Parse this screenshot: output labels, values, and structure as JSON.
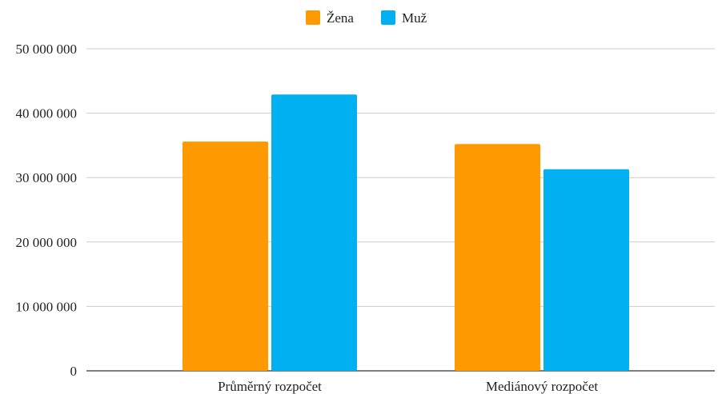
{
  "chart_data": {
    "type": "bar",
    "categories": [
      "Průměrný rozpočet",
      "Mediánový rozpočet"
    ],
    "series": [
      {
        "name": "Žena",
        "values": [
          35600000,
          35200000
        ],
        "color": "#ff9900"
      },
      {
        "name": "Muž",
        "values": [
          42900000,
          31300000
        ],
        "color": "#00b0f0"
      }
    ],
    "ylim": [
      0,
      50000000
    ],
    "yticks": [
      0,
      10000000,
      20000000,
      30000000,
      40000000,
      50000000
    ],
    "ytick_labels": [
      "0",
      "10 000 000",
      "20 000 000",
      "30 000 000",
      "40 000 000",
      "50 000 000"
    ],
    "grid": true,
    "legend": "top-center",
    "title": "",
    "xlabel": "",
    "ylabel": ""
  }
}
